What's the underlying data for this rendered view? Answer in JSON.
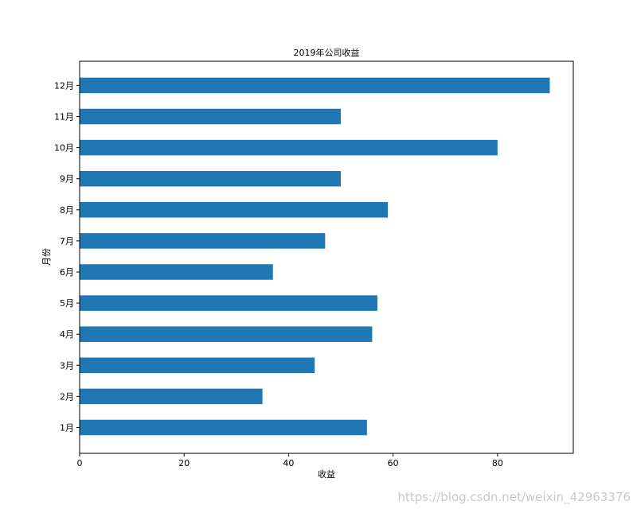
{
  "chart_data": {
    "type": "bar",
    "orientation": "horizontal",
    "title": "2019年公司收益",
    "xlabel": "收益",
    "ylabel": "月份",
    "categories": [
      "1月",
      "2月",
      "3月",
      "4月",
      "5月",
      "6月",
      "7月",
      "8月",
      "9月",
      "10月",
      "11月",
      "12月"
    ],
    "values": [
      55,
      35,
      45,
      56,
      57,
      37,
      47,
      59,
      50,
      80,
      50,
      90
    ],
    "xlim": [
      0,
      94.5
    ],
    "xticks": [
      0,
      20,
      40,
      60,
      80
    ],
    "bar_color": "#1f77b4",
    "grid": false,
    "legend": "none"
  },
  "watermark": "https://blog.csdn.net/weixin_42963376"
}
